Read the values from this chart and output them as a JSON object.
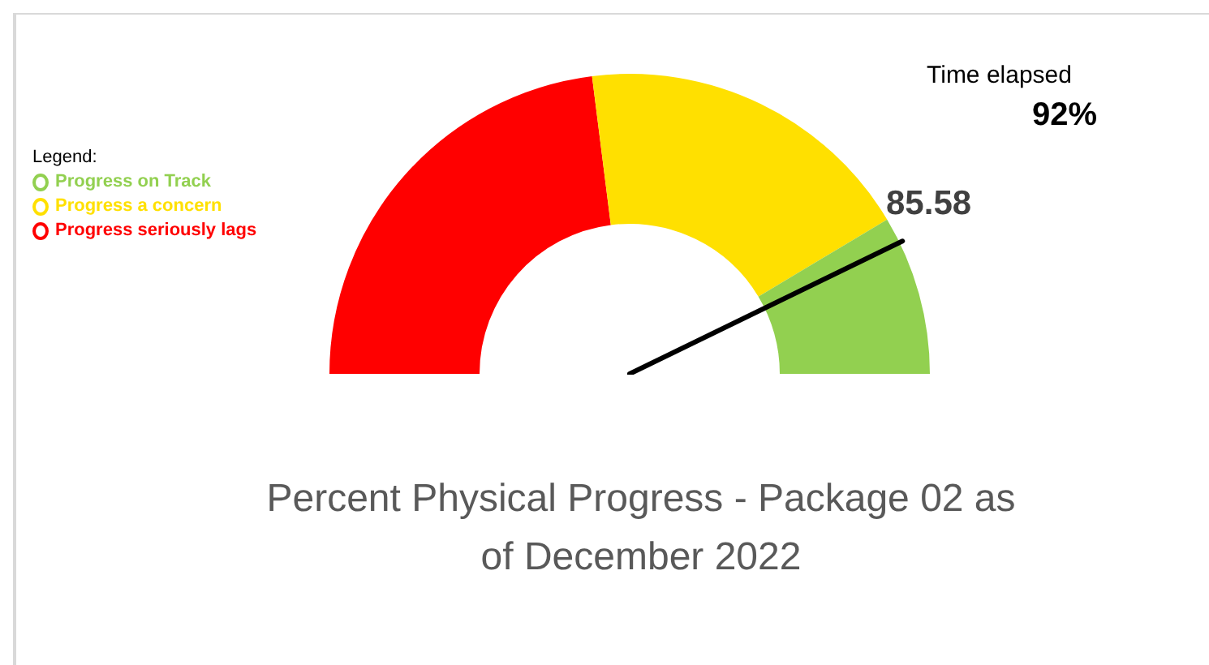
{
  "chart_data": {
    "type": "donut",
    "title": "Percent Physical Progress - Package 02 as of December 2022",
    "legend_title": "Legend:",
    "legend": "left",
    "categories": [
      "Progress seriously lags",
      "Progress a concern",
      "Progress on Track"
    ],
    "values": [
      46,
      36.8,
      17.2
    ],
    "colors": [
      "#ff0000",
      "#ffe000",
      "#92d050"
    ],
    "needle": "Progress on Track",
    "annotations": [
      "85.58",
      "Time elapsed",
      "92%"
    ]
  }
}
